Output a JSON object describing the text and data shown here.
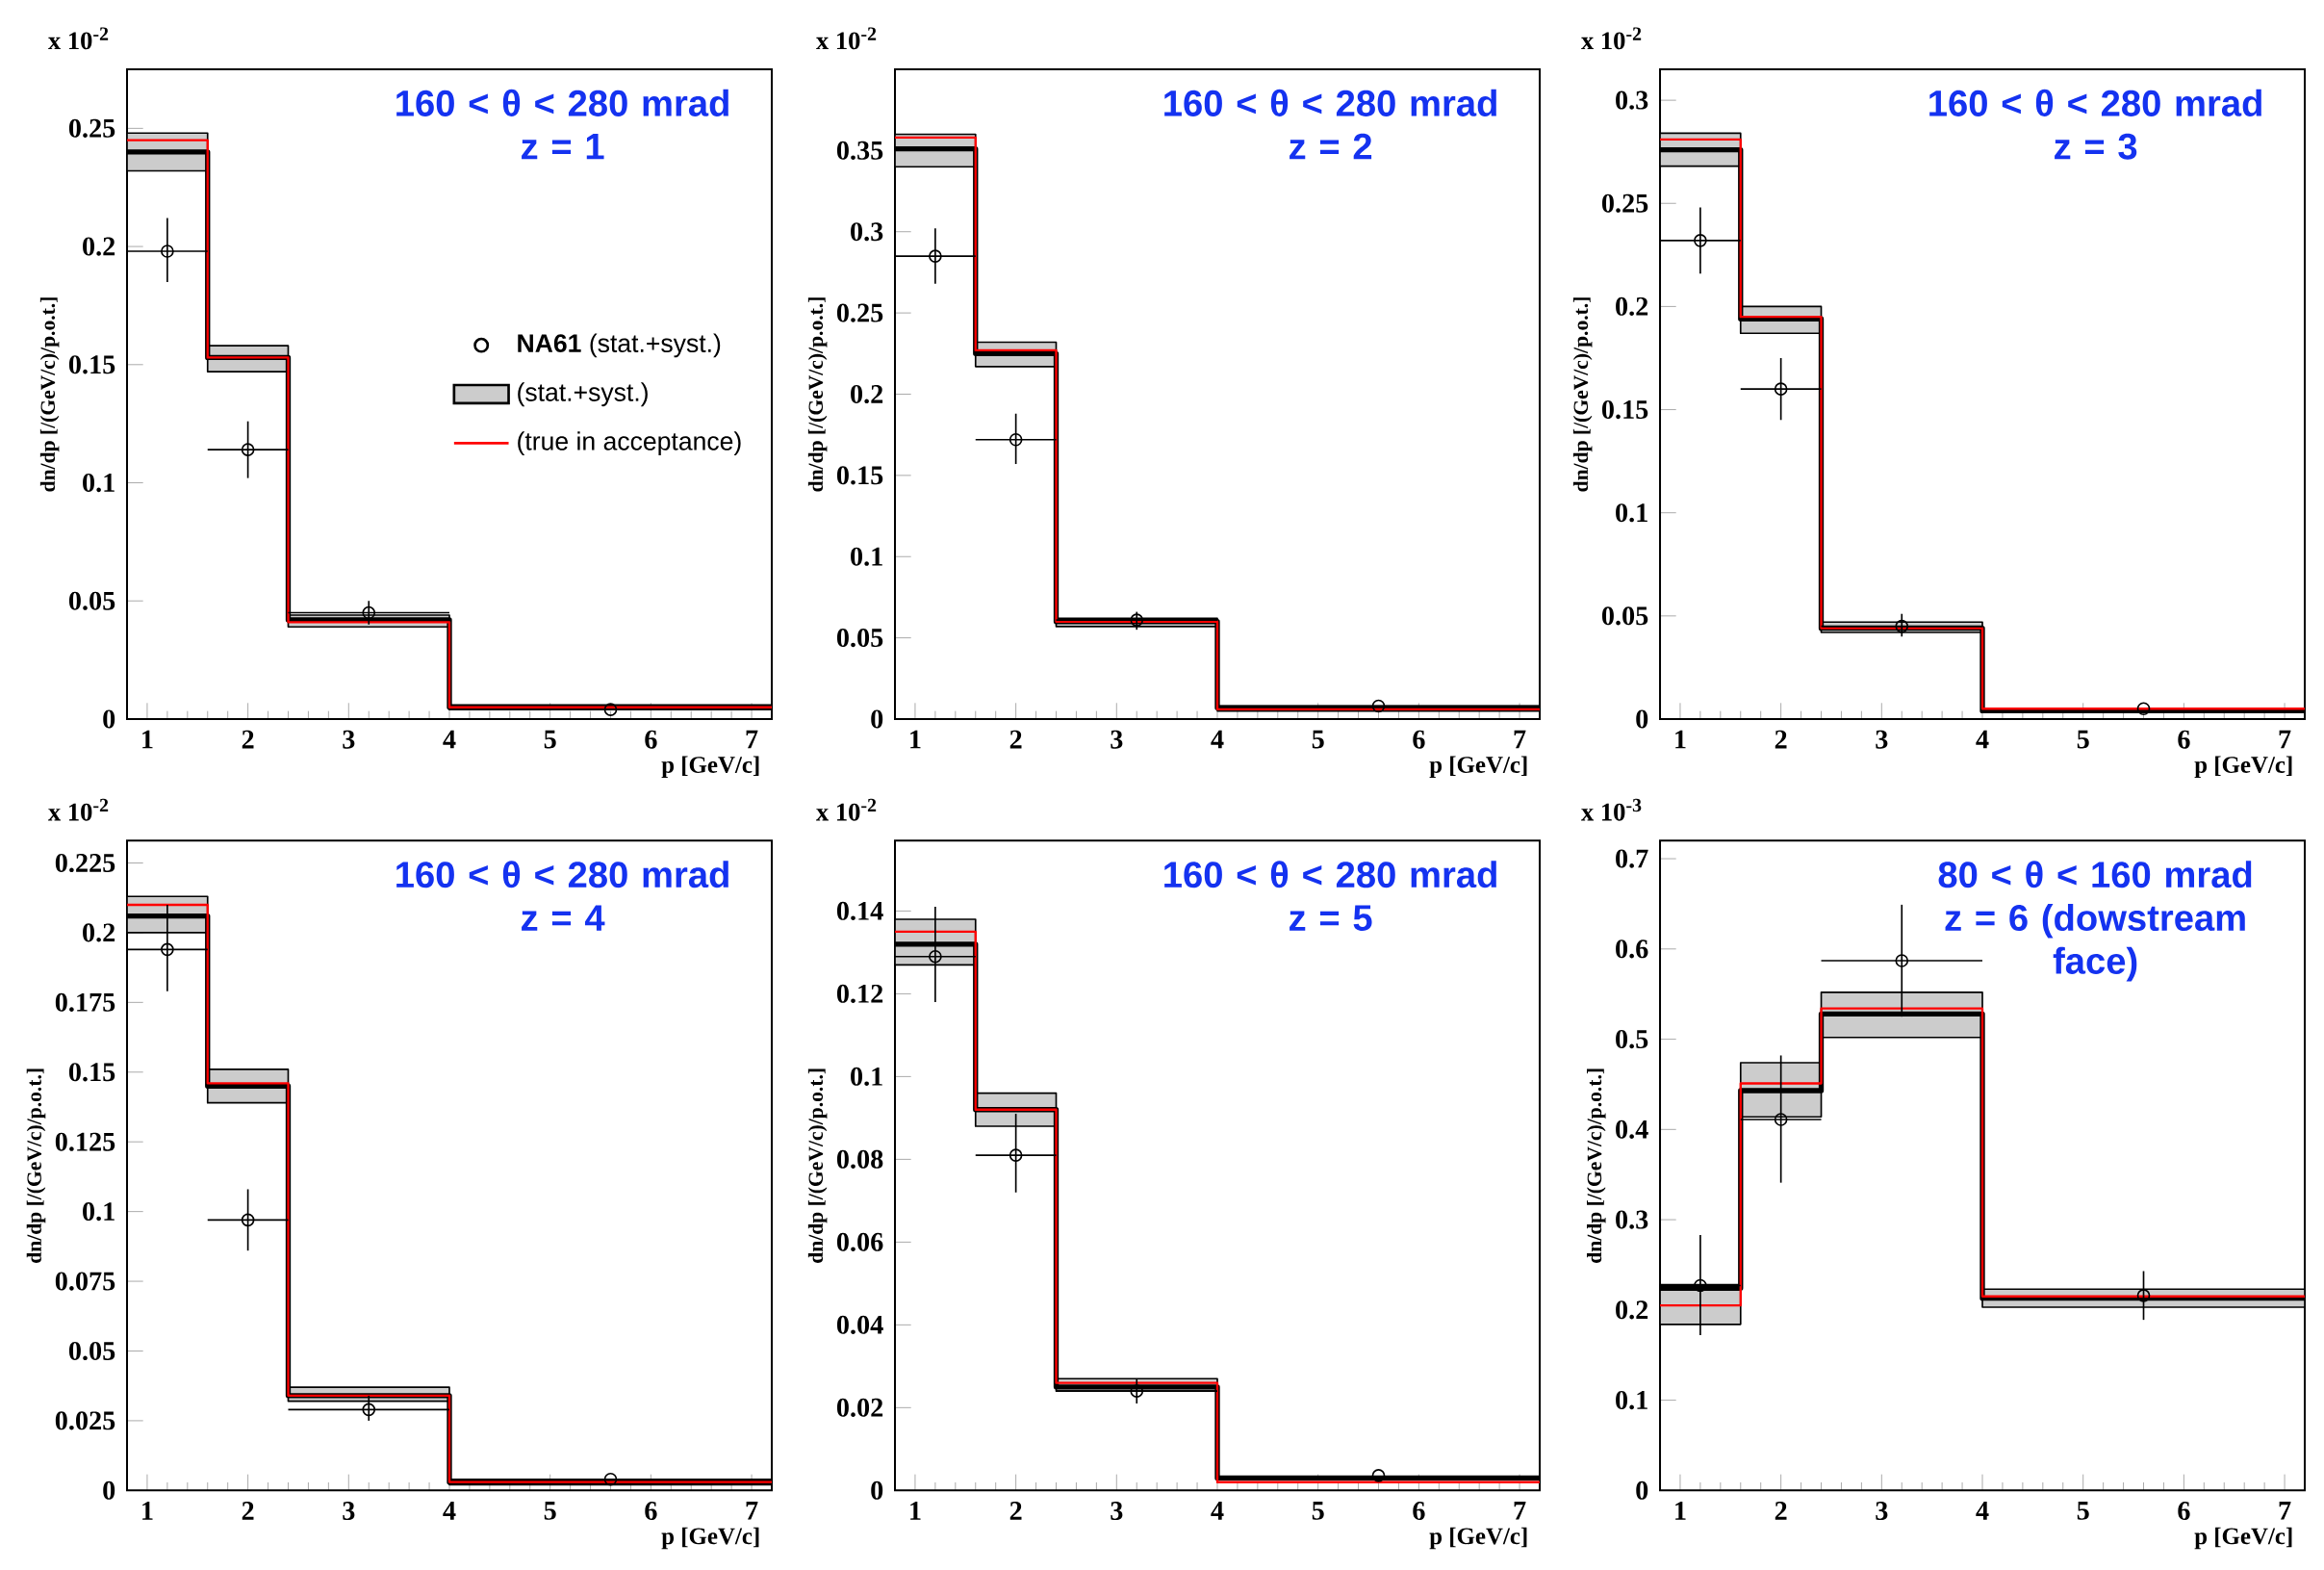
{
  "chart_data": [
    {
      "type": "step",
      "title": "160 < θ < 280 mrad",
      "subtitle": "z = 1",
      "xlabel": "p [GeV/c]",
      "ylabel": "dn/dp [/(GeV/c)/p.o.t.]",
      "annotations": [
        "x 10$^{-2}$"
      ],
      "x": [
        0.8,
        1.6,
        2.4,
        4,
        7.2
      ],
      "xlim": [
        0.8,
        7.2
      ],
      "xticks": [
        1,
        2,
        3,
        4,
        5,
        6,
        7
      ],
      "ylim": [
        0,
        0.275
      ],
      "yticks": [
        0,
        0.05,
        0.1,
        0.15,
        0.2,
        0.25
      ],
      "legend": "right",
      "series": [
        {
          "name": "**NA61** (stat.+syst.)",
          "type": "scatter",
          "marker": "circle",
          "color": "#000000",
          "x": [
            1.2,
            2,
            3.2,
            5.6
          ],
          "values": [
            0.198,
            0.114,
            0.045,
            0.004
          ],
          "errors": [
            [
              0.185,
              0.212
            ],
            [
              0.102,
              0.126
            ],
            [
              0.04,
              0.05
            ],
            null
          ],
          "xerrors": [
            0.4,
            0.4,
            0.8,
            null
          ]
        },
        {
          "name": "(stat.+syst.)",
          "color": "#000000",
          "values": [
            0.24,
            0.153,
            0.042,
            0.005,
            0.005
          ],
          "lower": [
            0.232,
            0.147,
            0.039,
            0.004,
            0.004
          ],
          "upper": [
            0.248,
            0.158,
            0.044,
            0.006,
            0.006
          ]
        },
        {
          "name": "(true in acceptance)",
          "color": "#ff0000",
          "values": [
            0.245,
            0.153,
            0.041,
            0.005,
            0.005
          ]
        }
      ]
    },
    {
      "type": "step",
      "title": "160 < θ < 280 mrad",
      "subtitle": "z = 2",
      "xlabel": "p [GeV/c]",
      "ylabel": "dn/dp [/(GeV/c)/p.o.t.]",
      "annotations": [
        "x 10$^{-2}$"
      ],
      "x": [
        0.8,
        1.6,
        2.4,
        4,
        7.2
      ],
      "xlim": [
        0.8,
        7.2
      ],
      "xticks": [
        1,
        2,
        3,
        4,
        5,
        6,
        7
      ],
      "ylim": [
        0,
        0.4
      ],
      "yticks": [
        0,
        0.05,
        0.1,
        0.15,
        0.2,
        0.25,
        0.3,
        0.35
      ],
      "series": [
        {
          "type": "scatter",
          "marker": "circle",
          "color": "#000000",
          "x": [
            1.2,
            2,
            3.2,
            5.6
          ],
          "values": [
            0.285,
            0.172,
            0.061,
            0.008
          ],
          "errors": [
            [
              0.268,
              0.302
            ],
            [
              0.157,
              0.188
            ],
            [
              0.055,
              0.066
            ],
            null
          ],
          "xerrors": [
            0.4,
            0.4,
            0.8,
            null
          ]
        },
        {
          "color": "#000000",
          "values": [
            0.351,
            0.225,
            0.06,
            0.007,
            0.007
          ],
          "lower": [
            0.34,
            0.217,
            0.057,
            0.005,
            0.005
          ],
          "upper": [
            0.36,
            0.232,
            0.062,
            0.008,
            0.008
          ]
        },
        {
          "color": "#ff0000",
          "values": [
            0.358,
            0.227,
            0.06,
            0.006,
            0.006
          ]
        }
      ]
    },
    {
      "type": "step",
      "title": "160 < θ < 280 mrad",
      "subtitle": "z = 3",
      "xlabel": "p [GeV/c]",
      "ylabel": "dn/dp [/(GeV/c)/p.o.t.]",
      "annotations": [
        "x 10$^{-2}$"
      ],
      "x": [
        0.8,
        1.6,
        2.4,
        4,
        7.2
      ],
      "xlim": [
        0.8,
        7.2
      ],
      "xticks": [
        1,
        2,
        3,
        4,
        5,
        6,
        7
      ],
      "ylim": [
        0,
        0.315
      ],
      "yticks": [
        0,
        0.05,
        0.1,
        0.15,
        0.2,
        0.25,
        0.3
      ],
      "series": [
        {
          "type": "scatter",
          "marker": "circle",
          "color": "#000000",
          "x": [
            1.2,
            2,
            3.2,
            5.6
          ],
          "values": [
            0.232,
            0.16,
            0.045,
            0.005
          ],
          "errors": [
            [
              0.216,
              0.248
            ],
            [
              0.145,
              0.175
            ],
            [
              0.04,
              0.051
            ],
            null
          ],
          "xerrors": [
            0.4,
            0.4,
            0.8,
            null
          ]
        },
        {
          "color": "#000000",
          "values": [
            0.276,
            0.194,
            0.044,
            0.004,
            0.004
          ],
          "lower": [
            0.268,
            0.187,
            0.042,
            0.004,
            0.004
          ],
          "upper": [
            0.284,
            0.2,
            0.047,
            0.005,
            0.005
          ]
        },
        {
          "color": "#ff0000",
          "values": [
            0.281,
            0.195,
            0.044,
            0.005,
            0.005
          ]
        }
      ]
    },
    {
      "type": "step",
      "title": "160 < θ < 280 mrad",
      "subtitle": "z = 4",
      "xlabel": "p [GeV/c]",
      "ylabel": "dn/dp [/(GeV/c)/p.o.t.]",
      "annotations": [
        "x 10$^{-2}$"
      ],
      "x": [
        0.8,
        1.6,
        2.4,
        4,
        7.2
      ],
      "xlim": [
        0.8,
        7.2
      ],
      "xticks": [
        1,
        2,
        3,
        4,
        5,
        6,
        7
      ],
      "ylim": [
        0,
        0.233
      ],
      "yticks": [
        0,
        0.025,
        0.05,
        0.075,
        0.1,
        0.125,
        0.15,
        0.175,
        0.2,
        0.225
      ],
      "series": [
        {
          "type": "scatter",
          "marker": "circle",
          "color": "#000000",
          "x": [
            1.2,
            2,
            3.2,
            5.6
          ],
          "values": [
            0.194,
            0.097,
            0.029,
            0.004
          ],
          "errors": [
            [
              0.179,
              0.21
            ],
            [
              0.086,
              0.108
            ],
            [
              0.025,
              0.034
            ],
            null
          ],
          "xerrors": [
            0.4,
            0.4,
            0.8,
            null
          ]
        },
        {
          "color": "#000000",
          "values": [
            0.206,
            0.145,
            0.034,
            0.003,
            0.003
          ],
          "lower": [
            0.2,
            0.139,
            0.032,
            0.002,
            0.002
          ],
          "upper": [
            0.213,
            0.151,
            0.037,
            0.004,
            0.004
          ]
        },
        {
          "color": "#ff0000",
          "values": [
            0.21,
            0.146,
            0.034,
            0.003,
            0.003
          ]
        }
      ]
    },
    {
      "type": "step",
      "title": "160 < θ < 280 mrad",
      "subtitle": "z = 5",
      "xlabel": "p [GeV/c]",
      "ylabel": "dn/dp [/(GeV/c)/p.o.t.]",
      "annotations": [
        "x 10$^{-2}$"
      ],
      "x": [
        0.8,
        1.6,
        2.4,
        4,
        7.2
      ],
      "xlim": [
        0.8,
        7.2
      ],
      "xticks": [
        1,
        2,
        3,
        4,
        5,
        6,
        7
      ],
      "ylim": [
        0,
        0.157
      ],
      "yticks": [
        0,
        0.02,
        0.04,
        0.06,
        0.08,
        0.1,
        0.12,
        0.14
      ],
      "series": [
        {
          "type": "scatter",
          "marker": "circle",
          "color": "#000000",
          "x": [
            1.2,
            2,
            3.2,
            5.6
          ],
          "values": [
            0.129,
            0.081,
            0.024,
            0.0036
          ],
          "errors": [
            [
              0.118,
              0.141
            ],
            [
              0.072,
              0.091
            ],
            [
              0.021,
              0.027
            ],
            null
          ],
          "xerrors": [
            0.4,
            0.4,
            0.8,
            null
          ]
        },
        {
          "color": "#000000",
          "values": [
            0.132,
            0.092,
            0.025,
            0.003,
            0.003
          ],
          "lower": [
            0.127,
            0.088,
            0.024,
            0.002,
            0.002
          ],
          "upper": [
            0.138,
            0.096,
            0.027,
            0.003,
            0.003
          ]
        },
        {
          "color": "#ff0000",
          "values": [
            0.135,
            0.092,
            0.026,
            0.002,
            0.002
          ]
        }
      ]
    },
    {
      "type": "step",
      "title": "80 < θ < 160 mrad",
      "subtitle": "z = 6 (dowstream face)",
      "xlabel": "p [GeV/c]",
      "ylabel": "dn/dp [/(GeV/c)/p.o.t.]",
      "annotations": [
        "x 10$^{-3}$"
      ],
      "x": [
        0.8,
        1.6,
        2.4,
        4,
        7.2
      ],
      "xlim": [
        0.8,
        7.2
      ],
      "xticks": [
        1,
        2,
        3,
        4,
        5,
        6,
        7
      ],
      "ylim": [
        0,
        0.72
      ],
      "yticks": [
        0,
        0.1,
        0.2,
        0.3,
        0.4,
        0.5,
        0.6,
        0.7
      ],
      "series": [
        {
          "type": "scatter",
          "marker": "circle",
          "color": "#000000",
          "x": [
            1.2,
            2,
            3.2,
            5.6
          ],
          "values": [
            0.227,
            0.411,
            0.587,
            0.216
          ],
          "errors": [
            [
              0.172,
              0.283
            ],
            [
              0.341,
              0.482
            ],
            [
              0.525,
              0.649
            ],
            [
              0.189,
              0.243
            ]
          ],
          "xerrors": [
            0.4,
            0.4,
            0.8,
            null
          ]
        },
        {
          "color": "#000000",
          "values": [
            0.224,
            0.443,
            0.528,
            0.213,
            0.213
          ],
          "lower": [
            0.184,
            0.414,
            0.502,
            0.203,
            0.203
          ],
          "upper": [
            0.228,
            0.474,
            0.552,
            0.223,
            0.223
          ]
        },
        {
          "color": "#ff0000",
          "values": [
            0.205,
            0.451,
            0.534,
            0.215,
            0.215
          ]
        }
      ]
    }
  ]
}
